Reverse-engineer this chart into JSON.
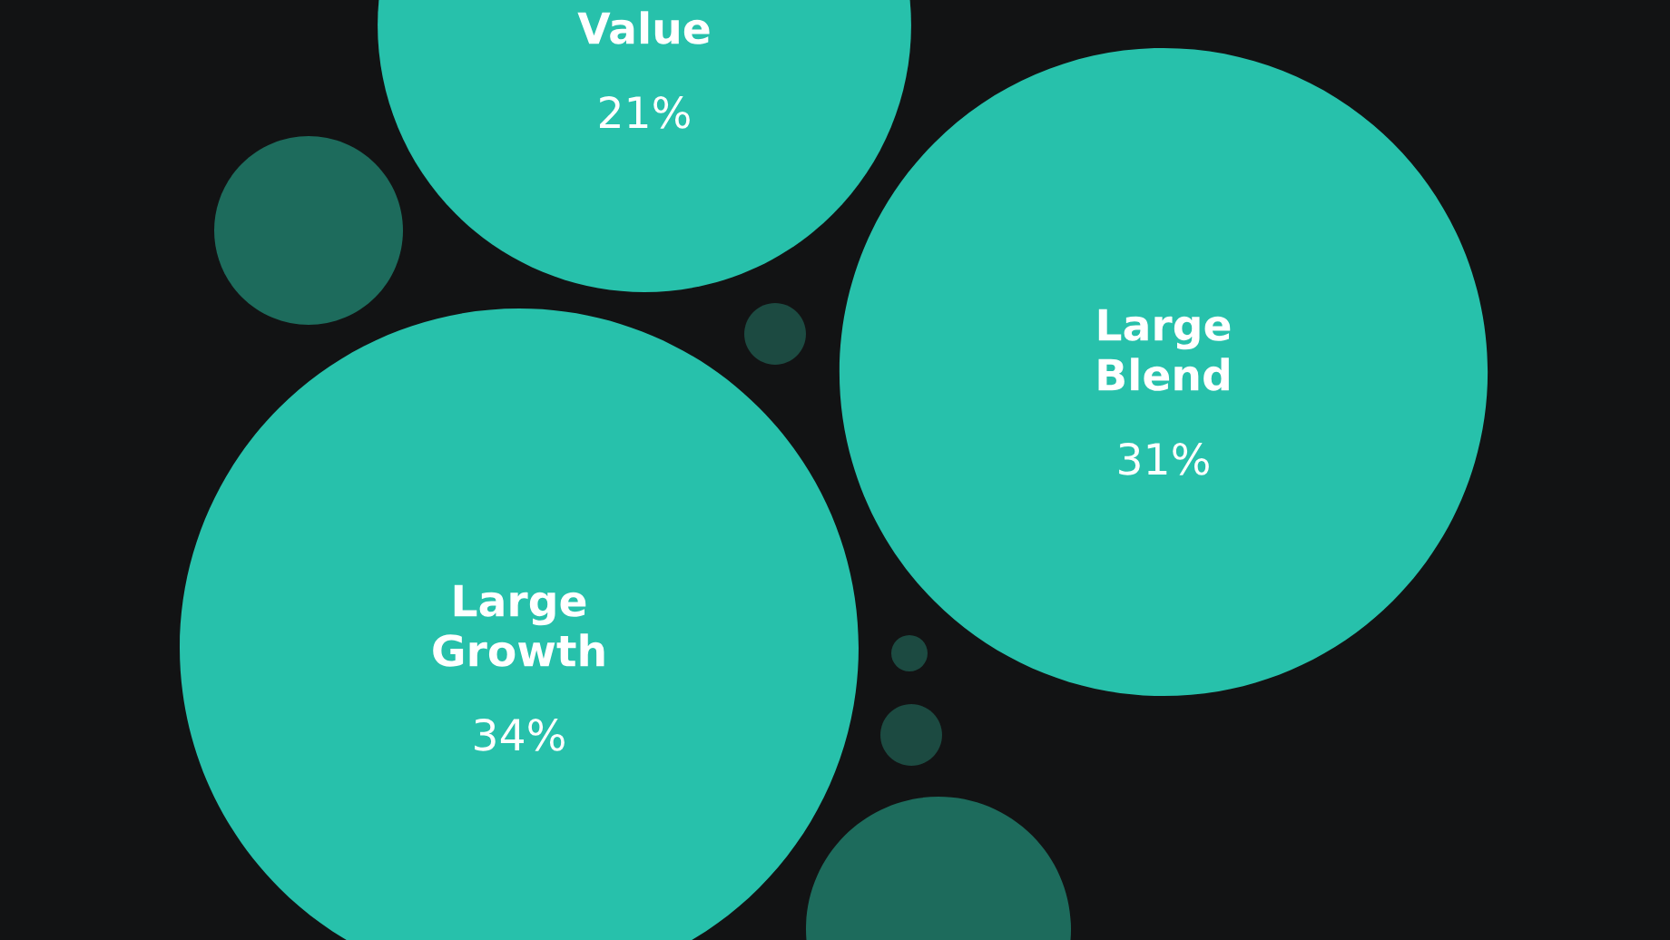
{
  "chart_data": {
    "type": "other",
    "categories": [
      "Large\nGrowth",
      "Large\nBlend",
      "Value"
    ],
    "values": [
      34,
      31,
      21
    ],
    "value_labels": [
      "34%",
      "31%",
      "21%"
    ],
    "colors": [
      "#27c1ab",
      "#27c1ab",
      "#27c1ab"
    ]
  }
}
